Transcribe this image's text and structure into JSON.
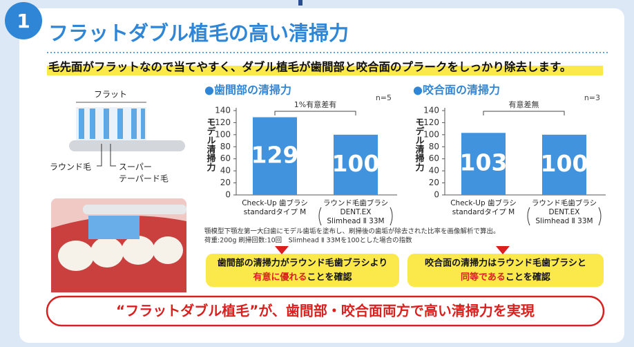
{
  "header": {
    "number": "1",
    "title": "フラットダブル植毛の高い清掃力",
    "lead": "毛先面がフラットなので当てやすく、ダブル植毛が歯間部と咬合面のプラークをしっかり除去します。"
  },
  "illustration": {
    "top_label": "フラット",
    "left_label": "ラウンド毛",
    "right_label": [
      "スーパー",
      "テーパード毛"
    ]
  },
  "chart_data": [
    {
      "type": "bar",
      "title": "●歯間部の清掃力",
      "sample": "n=5",
      "significance": "1%有意差有",
      "y_label": "モデル清掃力",
      "categories": [
        [
          "Check-Up 歯ブラシ",
          "standardタイプ M"
        ],
        [
          "ラウンド毛歯ブラシ",
          "DENT.EX",
          "Slimhead Ⅱ 33M"
        ]
      ],
      "values": [
        129,
        100
      ],
      "color": "#4193de",
      "ylim": [
        0,
        140
      ],
      "yticks": [
        0,
        20,
        40,
        60,
        80,
        100,
        120,
        140
      ]
    },
    {
      "type": "bar",
      "title": "●咬合面の清掃力",
      "sample": "n=3",
      "significance": "有意差無",
      "y_label": "モデル清掃力",
      "categories": [
        [
          "Check-Up 歯ブラシ",
          "standardタイプ M"
        ],
        [
          "ラウンド毛歯ブラシ",
          "DENT.EX",
          "Slimhead Ⅱ 33M"
        ]
      ],
      "values": [
        103,
        100
      ],
      "color": "#4193de",
      "ylim": [
        0,
        140
      ],
      "yticks": [
        0,
        20,
        40,
        60,
        80,
        100,
        120,
        140
      ]
    }
  ],
  "notes": [
    "顎模型下顎左第一大臼歯にモデル歯垢を塗布し、刷掃後の歯垢が除去された比率を画像解析で算出。",
    "荷重:200g 刷掃回数:10回　Slimhead Ⅱ 33Mを100とした場合の指数"
  ],
  "callouts": [
    {
      "line": "歯間部の清掃力がラウンド毛歯ブラシより",
      "emphasis": "有意に優れる",
      "tail": "ことを確認"
    },
    {
      "line": "咬合面の清掃力はラウンド毛歯ブラシと",
      "emphasis": "同等である",
      "tail": "ことを確認"
    }
  ],
  "conclusion": "“フラットダブル植毛”が、歯間部・咬合面両方で高い清掃力を実現"
}
